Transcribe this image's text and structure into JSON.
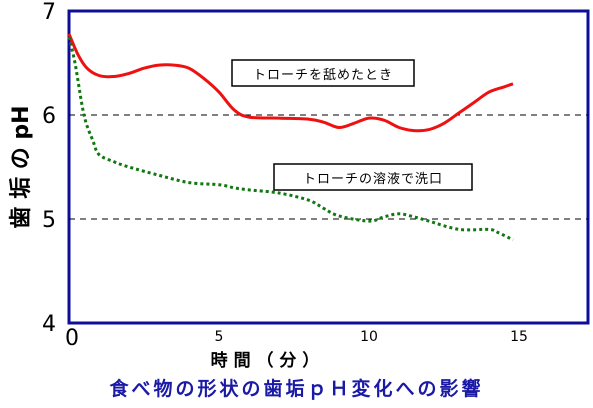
{
  "chart_data": {
    "type": "line",
    "title": "食べ物の形状の歯垢ｐＨ変化への影響",
    "xlabel": "時 間 （ 分 ）",
    "ylabel": "歯 垢 の pH",
    "xlim": [
      0,
      17.3
    ],
    "ylim": [
      4,
      7
    ],
    "x_ticks": [
      0,
      5,
      10,
      15
    ],
    "y_ticks": [
      4,
      5,
      6,
      7
    ],
    "reference_lines_y": [
      5,
      6
    ],
    "grid": false,
    "series": [
      {
        "name": "トローチを舐めたとき",
        "color": "#ee1111",
        "style": "solid",
        "x": [
          0,
          0.3,
          0.6,
          1.0,
          1.5,
          2.0,
          2.5,
          3.0,
          3.5,
          4.0,
          4.5,
          5.0,
          5.5,
          6.0,
          7.0,
          8.0,
          8.5,
          9.0,
          9.5,
          10.0,
          10.5,
          11.0,
          11.5,
          12.0,
          12.5,
          13.0,
          13.5,
          14.0,
          14.5,
          14.8
        ],
        "values": [
          6.78,
          6.58,
          6.45,
          6.38,
          6.37,
          6.4,
          6.45,
          6.48,
          6.48,
          6.45,
          6.35,
          6.22,
          6.05,
          5.98,
          5.97,
          5.96,
          5.93,
          5.88,
          5.92,
          5.97,
          5.95,
          5.88,
          5.85,
          5.86,
          5.92,
          6.02,
          6.12,
          6.22,
          6.27,
          6.3
        ]
      },
      {
        "name": "トローチの溶液で洗口",
        "color": "#117711",
        "style": "dotted",
        "x": [
          0,
          0.2,
          0.5,
          0.8,
          1.0,
          1.5,
          2.0,
          3.0,
          4.0,
          5.0,
          5.5,
          6.0,
          7.0,
          8.0,
          8.5,
          9.0,
          10.0,
          10.5,
          11.0,
          11.5,
          12.0,
          13.0,
          14.0,
          14.3,
          14.8
        ],
        "values": [
          6.75,
          6.5,
          6.0,
          5.75,
          5.62,
          5.55,
          5.5,
          5.42,
          5.35,
          5.33,
          5.3,
          5.28,
          5.25,
          5.18,
          5.1,
          5.03,
          4.98,
          5.02,
          5.05,
          5.02,
          4.98,
          4.9,
          4.9,
          4.87,
          4.8
        ]
      }
    ]
  }
}
